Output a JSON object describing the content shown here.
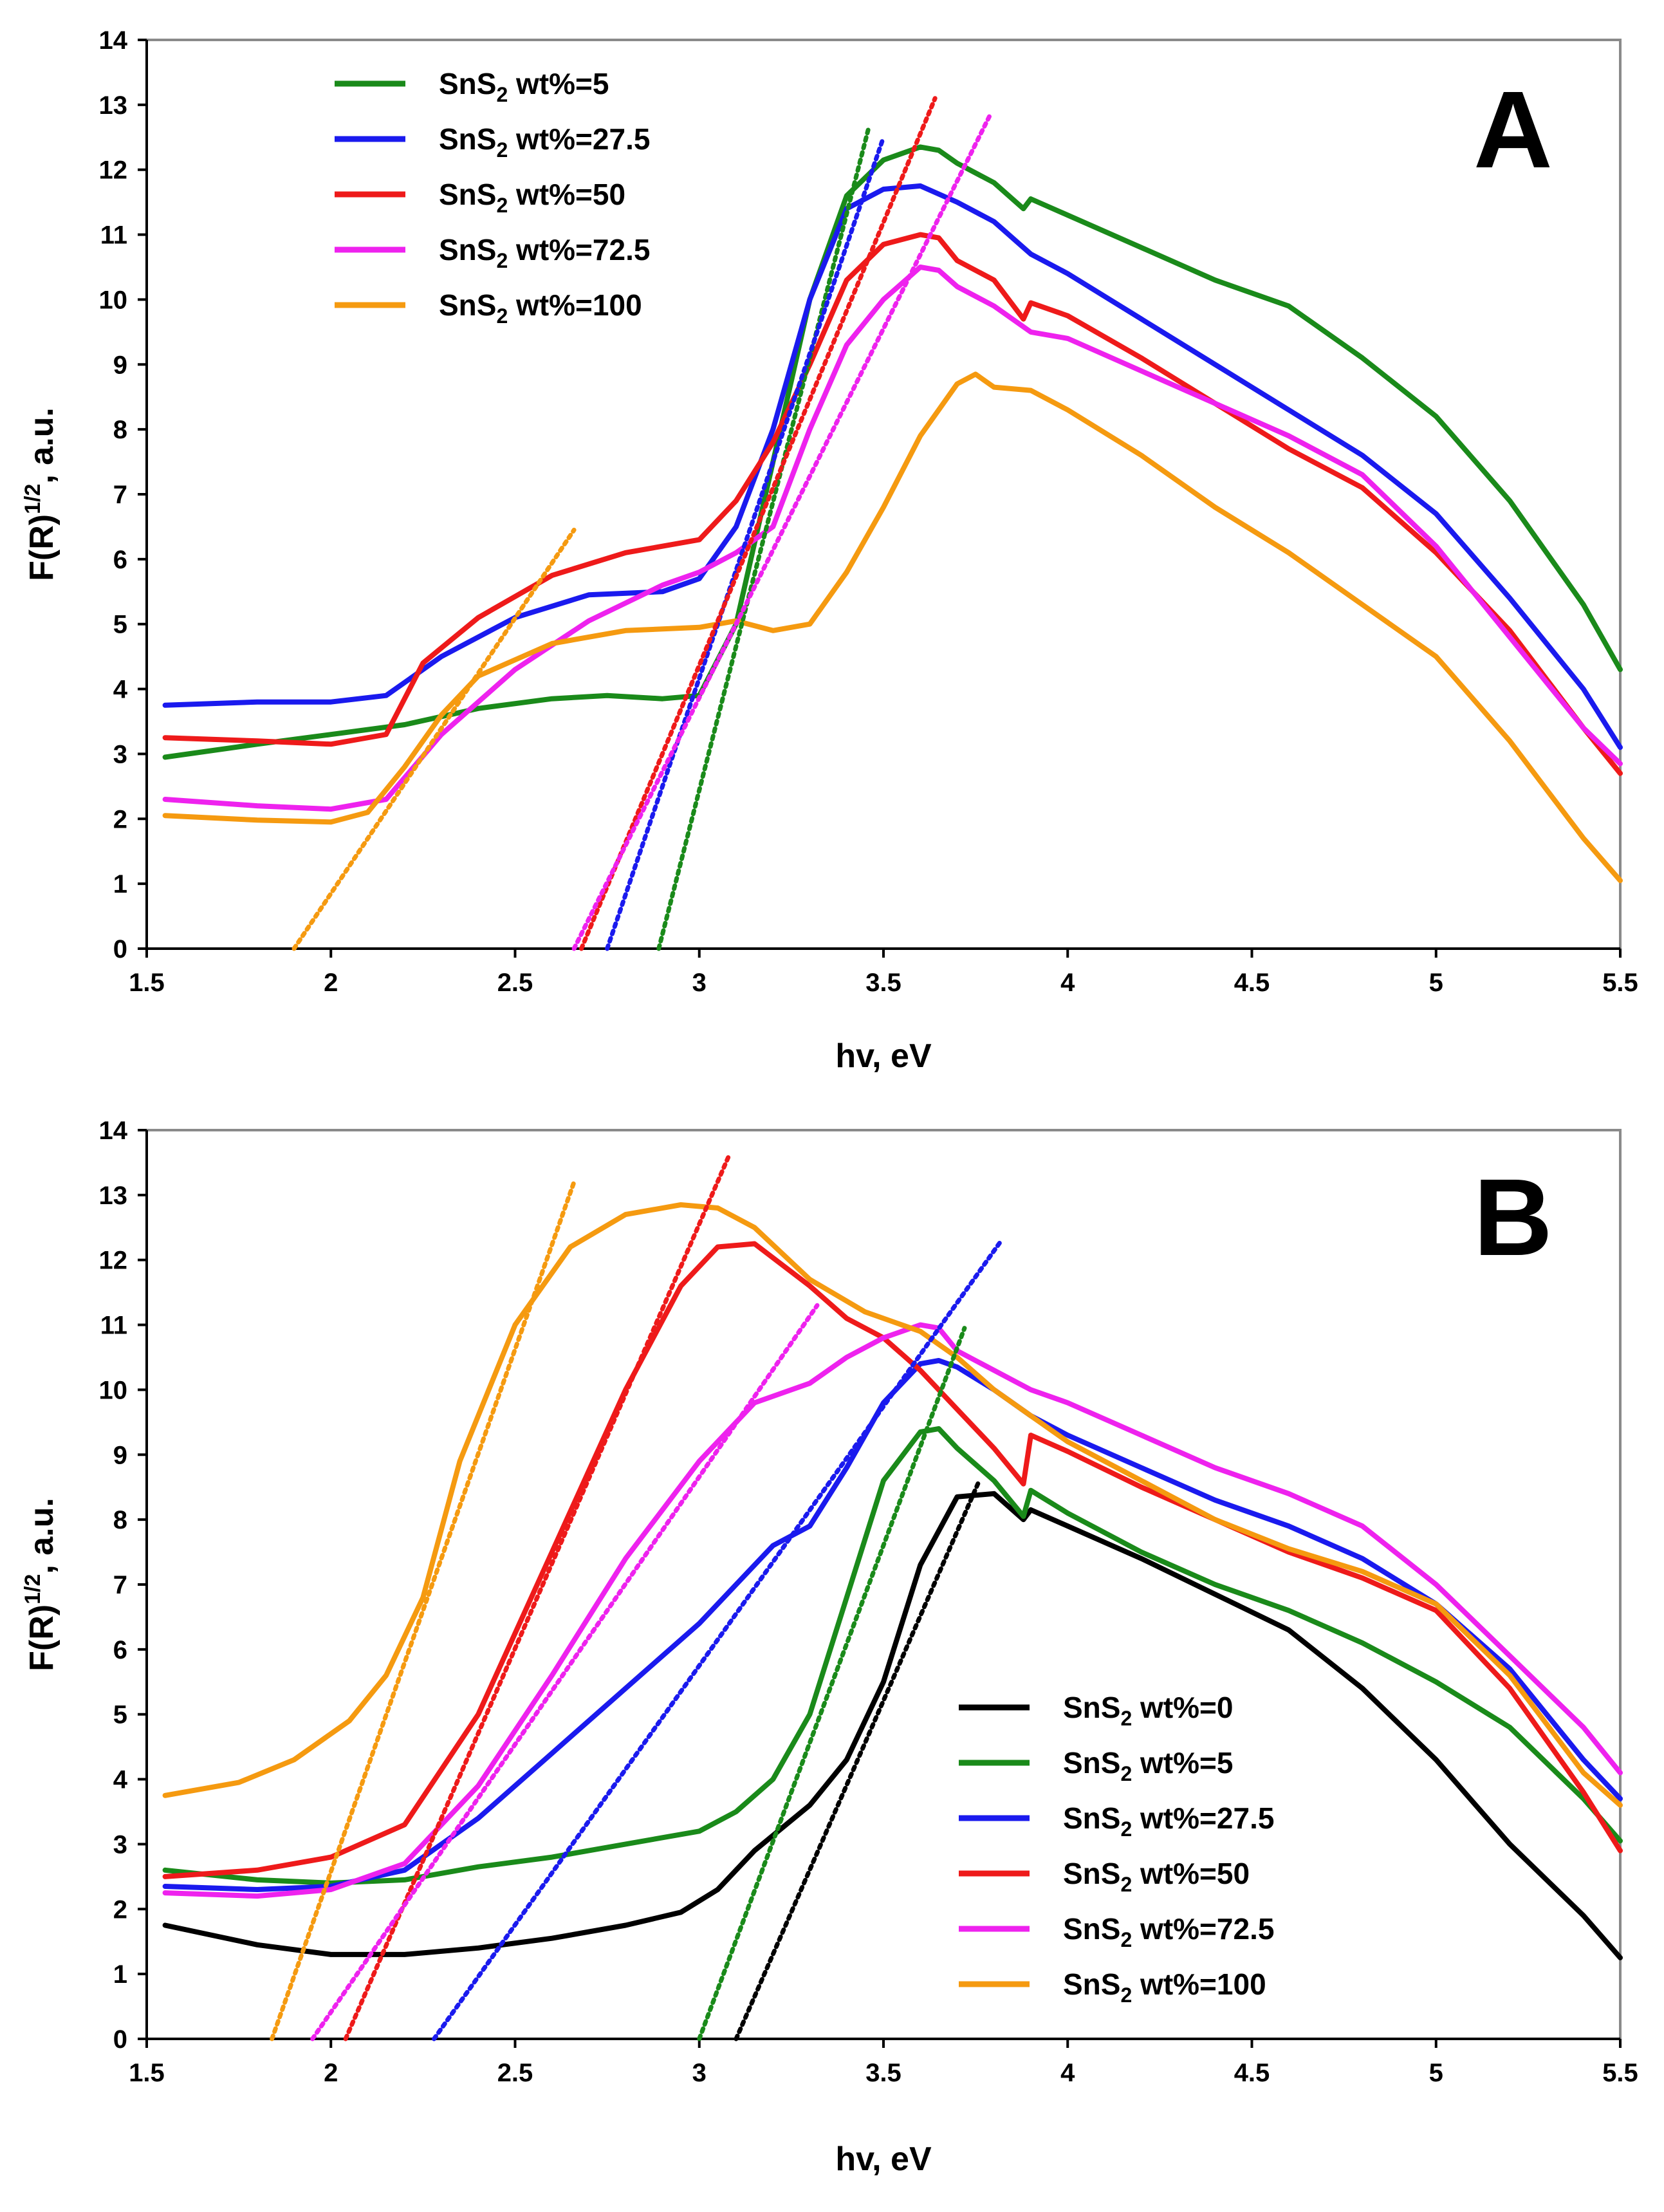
{
  "figure": {
    "panels": [
      "A",
      "B"
    ]
  },
  "chart_data": [
    {
      "type": "line",
      "panel_label": "A",
      "xlabel": "hv, eV",
      "ylabel": "F(R)",
      "ylabel_sup": "1/2",
      "ylabel_suffix": ", a.u.",
      "xlim": [
        1.5,
        5.5
      ],
      "ylim": [
        0,
        14
      ],
      "x_ticks": [
        "1.5",
        "2",
        "2.5",
        "3",
        "3.5",
        "4",
        "4.5",
        "5",
        "5.5"
      ],
      "y_ticks": [
        "0",
        "1",
        "2",
        "3",
        "4",
        "5",
        "6",
        "7",
        "8",
        "9",
        "10",
        "11",
        "12",
        "13",
        "14"
      ],
      "legend_position": "top-left",
      "series": [
        {
          "name": "SnS2 wt%=5",
          "legend_main": "SnS",
          "legend_sub": "2",
          "legend_rest": " wt%=5",
          "color": "#1a8a1a",
          "x": [
            1.55,
            1.8,
            2.0,
            2.2,
            2.4,
            2.6,
            2.75,
            2.9,
            3.0,
            3.1,
            3.2,
            3.3,
            3.4,
            3.5,
            3.6,
            3.65,
            3.7,
            3.8,
            3.88,
            3.9,
            4.0,
            4.2,
            4.4,
            4.6,
            4.8,
            5.0,
            5.2,
            5.4,
            5.5
          ],
          "y": [
            2.95,
            3.15,
            3.3,
            3.45,
            3.7,
            3.85,
            3.9,
            3.85,
            3.9,
            5.0,
            7.5,
            10.0,
            11.6,
            12.15,
            12.35,
            12.3,
            12.1,
            11.8,
            11.4,
            11.55,
            11.3,
            10.8,
            10.3,
            9.9,
            9.1,
            8.2,
            6.9,
            5.3,
            4.3
          ]
        },
        {
          "name": "SnS2 wt%=27.5",
          "legend_main": "SnS",
          "legend_sub": "2",
          "legend_rest": " wt%=27.5",
          "color": "#1a1aee",
          "x": [
            1.55,
            1.8,
            2.0,
            2.15,
            2.3,
            2.5,
            2.7,
            2.9,
            3.0,
            3.1,
            3.2,
            3.3,
            3.4,
            3.5,
            3.6,
            3.7,
            3.8,
            3.9,
            4.0,
            4.2,
            4.4,
            4.6,
            4.8,
            5.0,
            5.2,
            5.4,
            5.5
          ],
          "y": [
            3.75,
            3.8,
            3.8,
            3.9,
            4.5,
            5.1,
            5.45,
            5.5,
            5.7,
            6.5,
            8.0,
            10.0,
            11.4,
            11.7,
            11.75,
            11.5,
            11.2,
            10.7,
            10.4,
            9.7,
            9.0,
            8.3,
            7.6,
            6.7,
            5.4,
            4.0,
            3.1
          ]
        },
        {
          "name": "SnS2 wt%=50",
          "legend_main": "SnS",
          "legend_sub": "2",
          "legend_rest": " wt%=50",
          "color": "#ee1a1a",
          "x": [
            1.55,
            1.8,
            2.0,
            2.15,
            2.25,
            2.4,
            2.6,
            2.8,
            3.0,
            3.1,
            3.2,
            3.3,
            3.4,
            3.5,
            3.6,
            3.65,
            3.7,
            3.8,
            3.88,
            3.9,
            4.0,
            4.2,
            4.4,
            4.6,
            4.8,
            5.0,
            5.2,
            5.4,
            5.5
          ],
          "y": [
            3.25,
            3.2,
            3.15,
            3.3,
            4.4,
            5.1,
            5.75,
            6.1,
            6.3,
            6.9,
            7.8,
            9.0,
            10.3,
            10.85,
            11.0,
            10.95,
            10.6,
            10.3,
            9.7,
            9.95,
            9.75,
            9.1,
            8.4,
            7.7,
            7.1,
            6.1,
            4.9,
            3.4,
            2.7
          ]
        },
        {
          "name": "SnS2 wt%=72.5",
          "legend_main": "SnS",
          "legend_sub": "2",
          "legend_rest": " wt%=72.5",
          "color": "#ee22ee",
          "x": [
            1.55,
            1.8,
            2.0,
            2.15,
            2.3,
            2.5,
            2.7,
            2.9,
            3.0,
            3.1,
            3.2,
            3.3,
            3.4,
            3.5,
            3.6,
            3.65,
            3.7,
            3.8,
            3.9,
            4.0,
            4.2,
            4.4,
            4.6,
            4.8,
            5.0,
            5.2,
            5.4,
            5.5
          ],
          "y": [
            2.3,
            2.2,
            2.15,
            2.3,
            3.3,
            4.3,
            5.05,
            5.6,
            5.8,
            6.1,
            6.5,
            8.0,
            9.3,
            10.0,
            10.5,
            10.45,
            10.2,
            9.9,
            9.5,
            9.4,
            8.9,
            8.4,
            7.9,
            7.3,
            6.2,
            4.8,
            3.4,
            2.85
          ]
        },
        {
          "name": "SnS2 wt%=100",
          "legend_main": "SnS",
          "legend_sub": "2",
          "legend_rest": " wt%=100",
          "color": "#f59a10",
          "x": [
            1.55,
            1.8,
            2.0,
            2.1,
            2.2,
            2.3,
            2.4,
            2.6,
            2.8,
            3.0,
            3.1,
            3.2,
            3.3,
            3.4,
            3.5,
            3.6,
            3.7,
            3.75,
            3.8,
            3.9,
            4.0,
            4.2,
            4.4,
            4.6,
            4.8,
            5.0,
            5.2,
            5.4,
            5.5
          ],
          "y": [
            2.05,
            1.98,
            1.95,
            2.1,
            2.8,
            3.6,
            4.2,
            4.7,
            4.9,
            4.95,
            5.05,
            4.9,
            5.0,
            5.8,
            6.8,
            7.9,
            8.7,
            8.85,
            8.65,
            8.6,
            8.3,
            7.6,
            6.8,
            6.1,
            5.3,
            4.5,
            3.2,
            1.7,
            1.05
          ]
        }
      ],
      "tangents": [
        {
          "color": "#f59a10",
          "x": [
            1.9,
            2.66
          ],
          "y": [
            0,
            6.45
          ]
        },
        {
          "color": "#1a8a1a",
          "x": [
            2.89,
            3.46
          ],
          "y": [
            0,
            12.65
          ]
        },
        {
          "color": "#1a1aee",
          "x": [
            2.75,
            3.5
          ],
          "y": [
            0,
            12.5
          ]
        },
        {
          "color": "#ee1a1a",
          "x": [
            2.68,
            3.64
          ],
          "y": [
            0,
            13.1
          ]
        },
        {
          "color": "#ee22ee",
          "x": [
            2.66,
            3.79
          ],
          "y": [
            0,
            12.85
          ]
        }
      ]
    },
    {
      "type": "line",
      "panel_label": "B",
      "xlabel": "hv, eV",
      "ylabel": "F(R)",
      "ylabel_sup": "1/2",
      "ylabel_suffix": ", a.u.",
      "xlim": [
        1.5,
        5.5
      ],
      "ylim": [
        0,
        14
      ],
      "x_ticks": [
        "1.5",
        "2",
        "2.5",
        "3",
        "3.5",
        "4",
        "4.5",
        "5",
        "5.5"
      ],
      "y_ticks": [
        "0",
        "1",
        "2",
        "3",
        "4",
        "5",
        "6",
        "7",
        "8",
        "9",
        "10",
        "11",
        "12",
        "13",
        "14"
      ],
      "legend_position": "bottom-right",
      "series": [
        {
          "name": "SnS2 wt%=0",
          "legend_main": "SnS",
          "legend_sub": "2",
          "legend_rest": " wt%=0",
          "color": "#000000",
          "x": [
            1.55,
            1.8,
            2.0,
            2.2,
            2.4,
            2.6,
            2.8,
            2.95,
            3.05,
            3.15,
            3.3,
            3.4,
            3.5,
            3.6,
            3.7,
            3.8,
            3.88,
            3.9,
            4.0,
            4.2,
            4.4,
            4.6,
            4.8,
            5.0,
            5.2,
            5.4,
            5.5
          ],
          "y": [
            1.75,
            1.45,
            1.3,
            1.3,
            1.4,
            1.55,
            1.75,
            1.95,
            2.3,
            2.9,
            3.6,
            4.3,
            5.5,
            7.3,
            8.35,
            8.4,
            8.0,
            8.15,
            7.9,
            7.4,
            6.85,
            6.3,
            5.4,
            4.3,
            3.0,
            1.9,
            1.25
          ]
        },
        {
          "name": "SnS2 wt%=5",
          "legend_main": "SnS",
          "legend_sub": "2",
          "legend_rest": " wt%=5",
          "color": "#1a8a1a",
          "x": [
            1.55,
            1.8,
            2.0,
            2.2,
            2.4,
            2.6,
            2.8,
            3.0,
            3.1,
            3.2,
            3.3,
            3.4,
            3.5,
            3.6,
            3.65,
            3.7,
            3.8,
            3.88,
            3.9,
            4.0,
            4.2,
            4.4,
            4.6,
            4.8,
            5.0,
            5.2,
            5.4,
            5.5
          ],
          "y": [
            2.6,
            2.45,
            2.4,
            2.45,
            2.65,
            2.8,
            3.0,
            3.2,
            3.5,
            4.0,
            5.0,
            6.8,
            8.6,
            9.35,
            9.4,
            9.1,
            8.6,
            8.05,
            8.45,
            8.1,
            7.5,
            7.0,
            6.6,
            6.1,
            5.5,
            4.8,
            3.7,
            3.05
          ]
        },
        {
          "name": "SnS2 wt%=27.5",
          "legend_main": "SnS",
          "legend_sub": "2",
          "legend_rest": " wt%=27.5",
          "color": "#1a1aee",
          "x": [
            1.55,
            1.8,
            2.0,
            2.2,
            2.4,
            2.6,
            2.8,
            3.0,
            3.1,
            3.2,
            3.3,
            3.4,
            3.5,
            3.6,
            3.65,
            3.7,
            3.8,
            3.9,
            4.0,
            4.2,
            4.4,
            4.6,
            4.8,
            5.0,
            5.2,
            5.4,
            5.5
          ],
          "y": [
            2.35,
            2.3,
            2.35,
            2.6,
            3.4,
            4.4,
            5.4,
            6.4,
            7.0,
            7.6,
            7.9,
            8.8,
            9.8,
            10.4,
            10.45,
            10.35,
            10.0,
            9.6,
            9.3,
            8.8,
            8.3,
            7.9,
            7.4,
            6.7,
            5.7,
            4.3,
            3.7
          ]
        },
        {
          "name": "SnS2 wt%=50",
          "legend_main": "SnS",
          "legend_sub": "2",
          "legend_rest": " wt%=50",
          "color": "#ee1a1a",
          "x": [
            1.55,
            1.8,
            2.0,
            2.2,
            2.4,
            2.6,
            2.8,
            2.95,
            3.05,
            3.15,
            3.3,
            3.4,
            3.5,
            3.6,
            3.7,
            3.8,
            3.88,
            3.9,
            4.0,
            4.2,
            4.4,
            4.6,
            4.8,
            5.0,
            5.2,
            5.4,
            5.5
          ],
          "y": [
            2.5,
            2.6,
            2.8,
            3.3,
            5.0,
            7.5,
            10.0,
            11.6,
            12.2,
            12.25,
            11.6,
            11.1,
            10.8,
            10.3,
            9.7,
            9.1,
            8.55,
            9.3,
            9.05,
            8.5,
            8.0,
            7.5,
            7.1,
            6.6,
            5.4,
            3.8,
            2.9
          ]
        },
        {
          "name": "SnS2 wt%=72.5",
          "legend_main": "SnS",
          "legend_sub": "2",
          "legend_rest": " wt%=72.5",
          "color": "#ee22ee",
          "x": [
            1.55,
            1.8,
            2.0,
            2.2,
            2.4,
            2.6,
            2.8,
            3.0,
            3.15,
            3.3,
            3.4,
            3.5,
            3.6,
            3.65,
            3.7,
            3.8,
            3.9,
            4.0,
            4.2,
            4.4,
            4.6,
            4.8,
            5.0,
            5.2,
            5.4,
            5.5
          ],
          "y": [
            2.25,
            2.2,
            2.3,
            2.7,
            3.9,
            5.6,
            7.4,
            8.9,
            9.8,
            10.1,
            10.5,
            10.8,
            11.0,
            10.95,
            10.6,
            10.3,
            10.0,
            9.8,
            9.3,
            8.8,
            8.4,
            7.9,
            7.0,
            5.9,
            4.8,
            4.1
          ]
        },
        {
          "name": "SnS2 wt%=100",
          "legend_main": "SnS",
          "legend_sub": "2",
          "legend_rest": " wt%=100",
          "color": "#f59a10",
          "x": [
            1.55,
            1.75,
            1.9,
            2.05,
            2.15,
            2.25,
            2.35,
            2.5,
            2.65,
            2.8,
            2.95,
            3.05,
            3.15,
            3.3,
            3.45,
            3.6,
            3.7,
            3.8,
            3.9,
            4.0,
            4.2,
            4.4,
            4.6,
            4.8,
            5.0,
            5.2,
            5.4,
            5.5
          ],
          "y": [
            3.75,
            3.95,
            4.3,
            4.9,
            5.6,
            6.8,
            8.9,
            11.0,
            12.2,
            12.7,
            12.85,
            12.8,
            12.5,
            11.7,
            11.2,
            10.9,
            10.5,
            10.0,
            9.6,
            9.2,
            8.6,
            8.0,
            7.55,
            7.2,
            6.7,
            5.6,
            4.1,
            3.6
          ]
        }
      ],
      "tangents": [
        {
          "color": "#f59a10",
          "x": [
            1.84,
            2.66
          ],
          "y": [
            0,
            13.2
          ]
        },
        {
          "color": "#ee1a1a",
          "x": [
            2.04,
            3.08
          ],
          "y": [
            0,
            13.6
          ]
        },
        {
          "color": "#ee22ee",
          "x": [
            1.95,
            3.32
          ],
          "y": [
            0,
            11.3
          ]
        },
        {
          "color": "#1a1aee",
          "x": [
            2.28,
            3.82
          ],
          "y": [
            0,
            12.3
          ]
        },
        {
          "color": "#1a8a1a",
          "x": [
            3.0,
            3.72
          ],
          "y": [
            0,
            10.95
          ]
        },
        {
          "color": "#000000",
          "x": [
            3.1,
            3.76
          ],
          "y": [
            0,
            8.6
          ]
        }
      ]
    }
  ]
}
